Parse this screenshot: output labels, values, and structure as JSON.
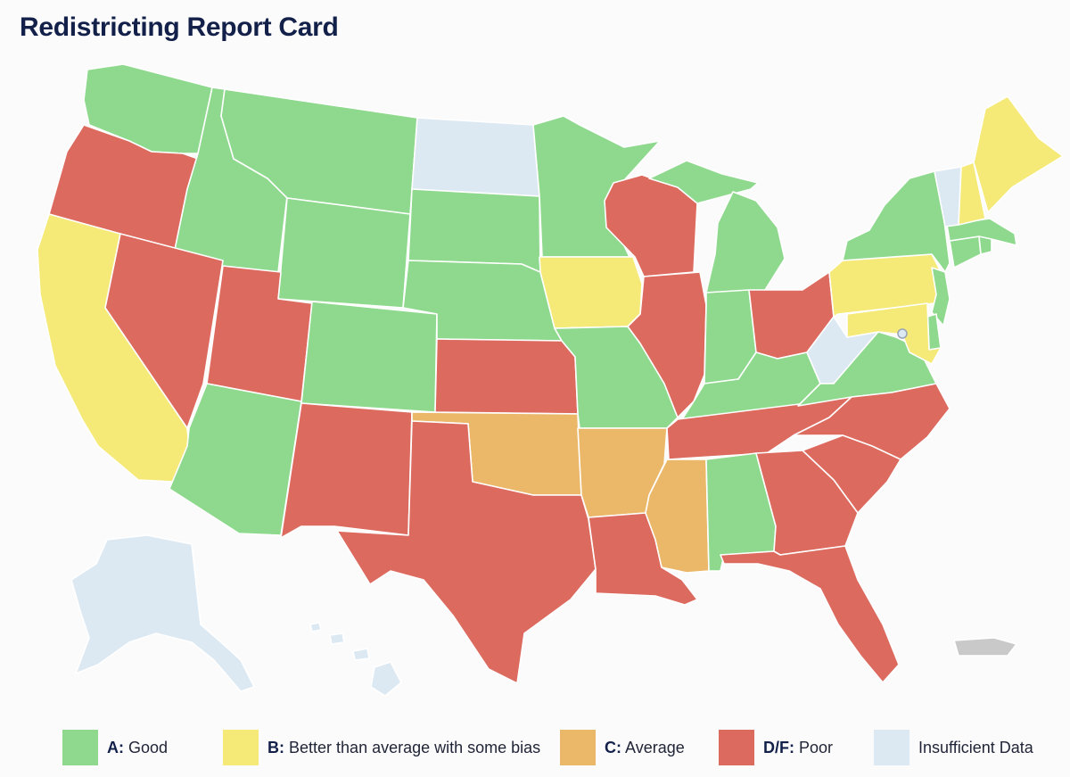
{
  "title": "Redistricting Report Card",
  "colors": {
    "A": "#8ed98d",
    "B": "#f5e977",
    "C": "#ebb86a",
    "DF": "#dc6a5e",
    "none": "#dce9f3",
    "territory": "#c9c9c9"
  },
  "legend": [
    {
      "grade": "A:",
      "label": "Good",
      "color": "#8ed98d"
    },
    {
      "grade": "B:",
      "label": "Better than average with some bias",
      "color": "#f5e977"
    },
    {
      "grade": "C:",
      "label": "Average",
      "color": "#ebb86a"
    },
    {
      "grade": "D/F:",
      "label": "Poor",
      "color": "#dc6a5e"
    },
    {
      "grade": "",
      "label": "Insufficient Data",
      "color": "#dce9f3"
    }
  ],
  "grades": {
    "WA": "A",
    "OR": "DF",
    "CA": "B",
    "ID": "A",
    "NV": "DF",
    "MT": "A",
    "WY": "A",
    "UT": "DF",
    "AZ": "A",
    "CO": "A",
    "NM": "DF",
    "ND": "none",
    "SD": "A",
    "NE": "A",
    "KS": "DF",
    "OK": "C",
    "TX": "DF",
    "MN": "A",
    "IA": "B",
    "MO": "A",
    "AR": "C",
    "LA": "DF",
    "WI": "DF",
    "IL": "DF",
    "MS": "C",
    "MI": "A",
    "IN": "A",
    "KY": "A",
    "TN": "DF",
    "AL": "A",
    "OH": "DF",
    "WV": "none",
    "VA": "A",
    "NC": "DF",
    "SC": "DF",
    "GA": "DF",
    "FL": "DF",
    "PA": "B",
    "NY": "A",
    "NJ": "A",
    "DE": "A",
    "MD": "B",
    "DC": "none",
    "CT": "A",
    "RI": "A",
    "MA": "A",
    "VT": "none",
    "NH": "B",
    "ME": "B",
    "AK": "none",
    "HI": "none",
    "PR": "territory"
  }
}
